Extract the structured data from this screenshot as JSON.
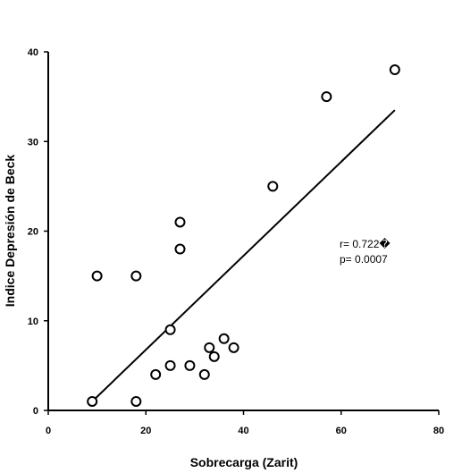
{
  "chart_data": {
    "type": "scatter",
    "xlabel": "Sobrecarga (Zarit)",
    "ylabel": "Indice Depresión de Beck",
    "xlim": [
      0,
      80
    ],
    "ylim": [
      0,
      40
    ],
    "xticks": [
      0,
      20,
      40,
      60,
      80
    ],
    "yticks": [
      0,
      10,
      20,
      30,
      40
    ],
    "grid": false,
    "points": [
      {
        "x": 9,
        "y": 1
      },
      {
        "x": 10,
        "y": 15
      },
      {
        "x": 18,
        "y": 15
      },
      {
        "x": 18,
        "y": 1
      },
      {
        "x": 22,
        "y": 4
      },
      {
        "x": 25,
        "y": 9
      },
      {
        "x": 25,
        "y": 5
      },
      {
        "x": 27,
        "y": 21
      },
      {
        "x": 27,
        "y": 18
      },
      {
        "x": 29,
        "y": 5
      },
      {
        "x": 32,
        "y": 4
      },
      {
        "x": 33,
        "y": 7
      },
      {
        "x": 34,
        "y": 6
      },
      {
        "x": 36,
        "y": 8
      },
      {
        "x": 38,
        "y": 7
      },
      {
        "x": 46,
        "y": 25
      },
      {
        "x": 57,
        "y": 35
      },
      {
        "x": 71,
        "y": 38
      }
    ],
    "regression_line": {
      "x": [
        9,
        71
      ],
      "y": [
        1,
        33.5
      ]
    },
    "annotations": [
      "r= 0.722�",
      "p= 0.0007"
    ]
  }
}
